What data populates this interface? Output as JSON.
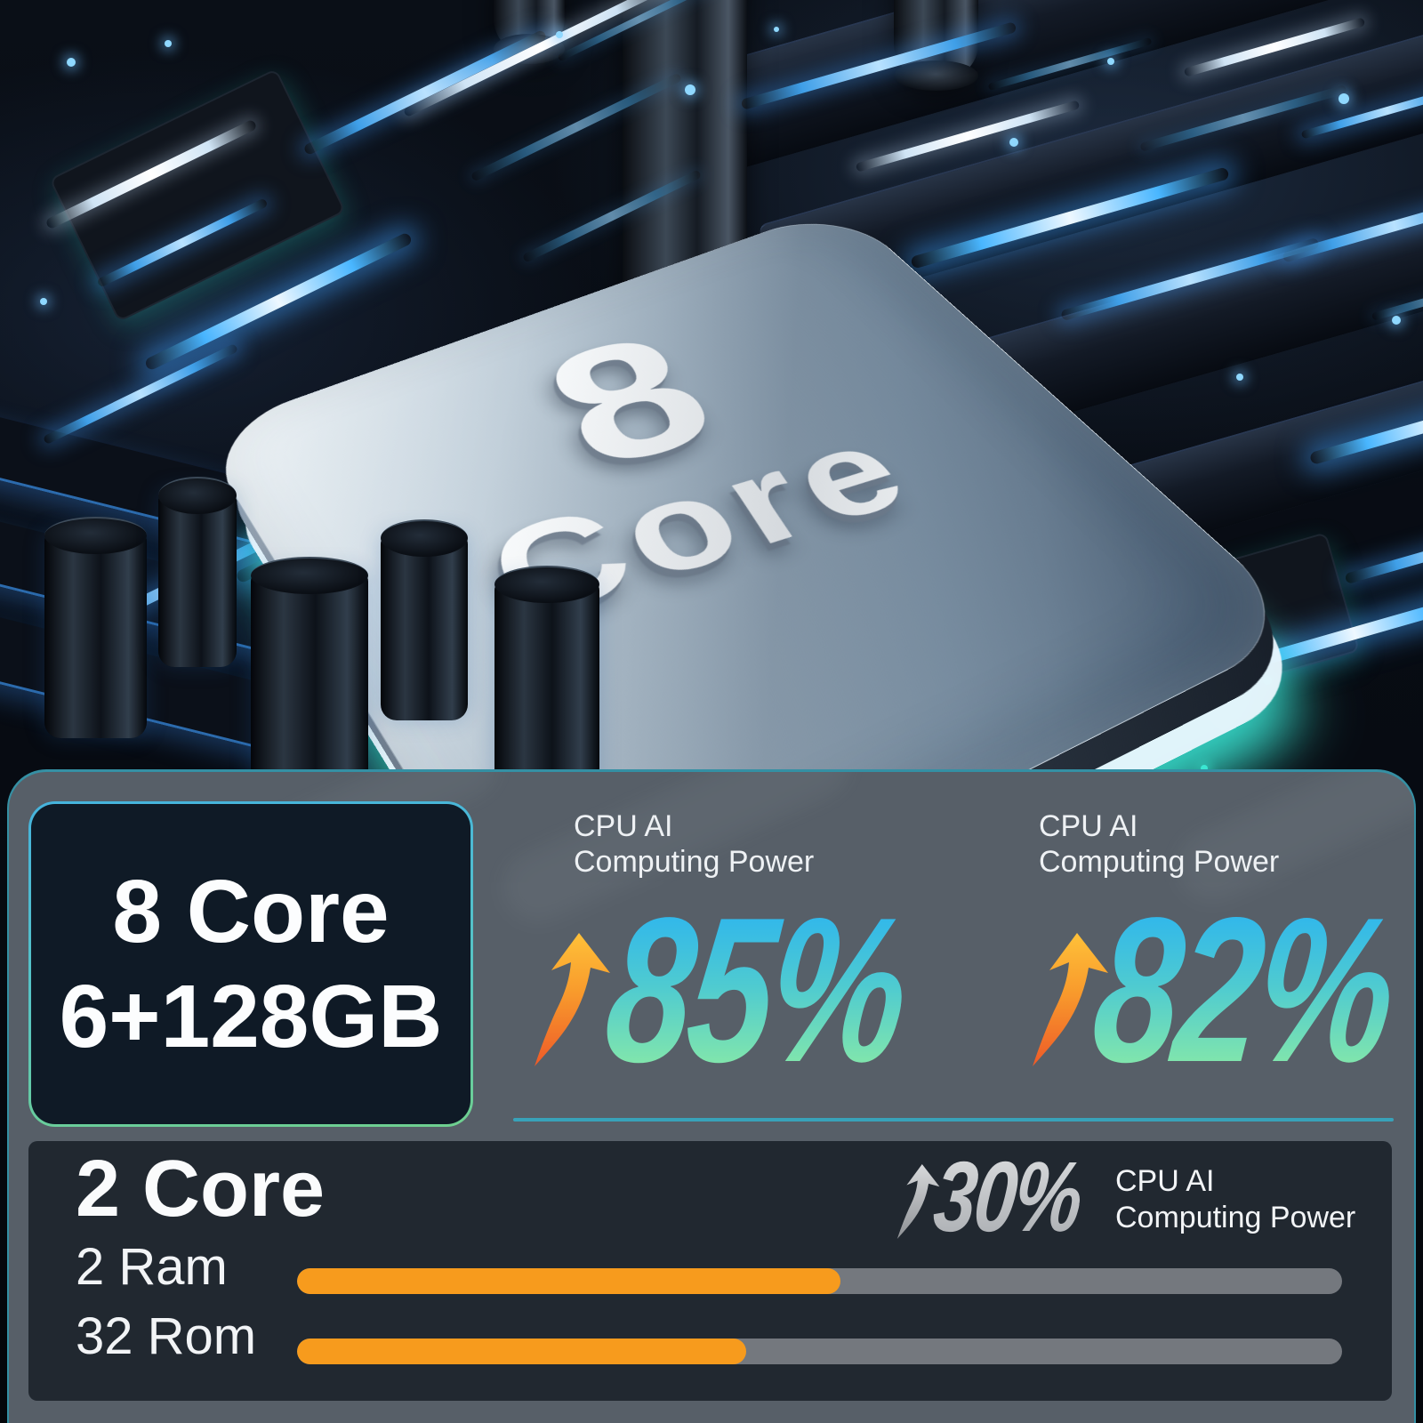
{
  "hero": {
    "chip_number": "8",
    "chip_word": "Core"
  },
  "panel": {
    "spec_box": {
      "line1": "8 Core",
      "line2": "6+128GB"
    },
    "stats": [
      {
        "label_line1": "CPU AI",
        "label_line2": "Computing Power",
        "value": "85%"
      },
      {
        "label_line1": "CPU AI",
        "label_line2": "Computing Power",
        "value": "82%"
      }
    ],
    "comparison": {
      "title": "2 Core",
      "value": "30%",
      "label_line1": "CPU AI",
      "label_line2": "Computing Power",
      "bars": [
        {
          "label": "2 Ram",
          "fill_percent": 52
        },
        {
          "label": "32 Rom",
          "fill_percent": 43
        }
      ]
    }
  },
  "colors": {
    "panel_bg": "#575f68",
    "panel_border_teal": "#2f99af",
    "spec_box_bg": "#0f1a26",
    "spec_border_top": "#45b3dd",
    "spec_border_bottom": "#6fd08f",
    "pct_gradient_top": "#29b2f2",
    "pct_gradient_bottom": "#8feda2",
    "arrow_orange_top": "#ffc139",
    "arrow_orange_bottom": "#ee5a28",
    "bar_fill_orange": "#f79b1d",
    "bar_track_gray": "#74787e",
    "sub_panel_bg": "#212830",
    "gray_value": "#c9cbce",
    "chip_glow_teal": "#38e5d3",
    "trace_glow_blue": "#49b6ff"
  },
  "chart_data": {
    "type": "bar",
    "title": "CPU AI Computing Power comparison",
    "groups": [
      {
        "label": "8 Core 6+128GB",
        "metrics": [
          {
            "name": "CPU AI Computing Power",
            "value": 85,
            "unit": "%"
          },
          {
            "name": "CPU AI Computing Power",
            "value": 82,
            "unit": "%"
          }
        ]
      },
      {
        "label": "2 Core",
        "metrics": [
          {
            "name": "CPU AI Computing Power",
            "value": 30,
            "unit": "%"
          }
        ],
        "bars": [
          {
            "label": "2 Ram",
            "fill_fraction": 0.52
          },
          {
            "label": "32 Rom",
            "fill_fraction": 0.43
          }
        ]
      }
    ],
    "legend_position": "none",
    "grid": false
  }
}
